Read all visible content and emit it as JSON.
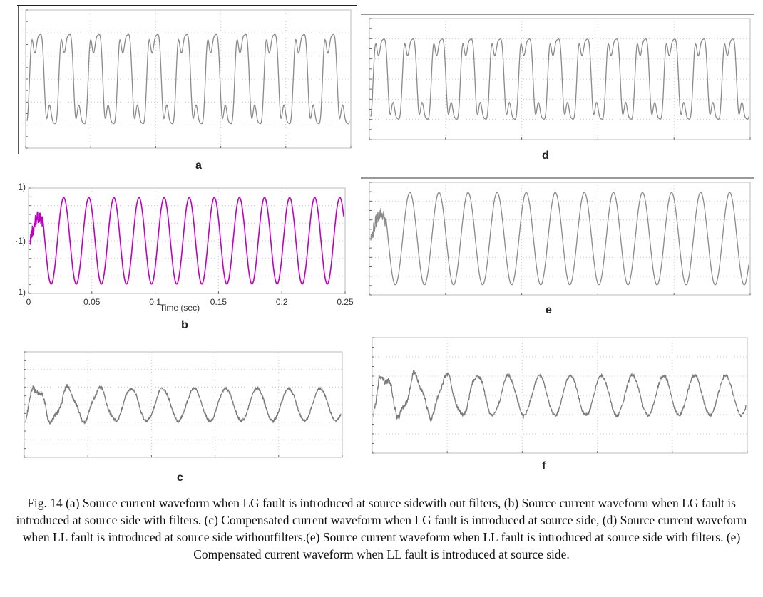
{
  "figure": {
    "panels": [
      {
        "id": "a",
        "label": "a",
        "color": "#8a8a8a",
        "framed": true
      },
      {
        "id": "b",
        "label": "b",
        "color": "#c000c0",
        "framed": false,
        "y_ticks": [
          "1)",
          "·1)",
          "1)"
        ],
        "x_ticks": [
          "0",
          "0.05",
          "0.1",
          "0.15",
          "0.2",
          "0.25"
        ],
        "xlabel": "Time (sec)"
      },
      {
        "id": "c",
        "label": "c",
        "color": "#7a7a7a",
        "framed": false
      },
      {
        "id": "d",
        "label": "d",
        "color": "#8a8a8a",
        "framed": false
      },
      {
        "id": "e",
        "label": "e",
        "color": "#8a8a8a",
        "framed": false
      },
      {
        "id": "f",
        "label": "f",
        "color": "#7a7a7a",
        "framed": false
      }
    ],
    "caption": "Fig. 14 (a) Source current waveform when LG fault is introduced at source sidewith out filters, (b)  Source current waveform when LG fault is introduced at source side with filters. (c) Compensated current waveform when LG fault is introduced at source side, (d)  Source current waveform when LL fault is introduced at source side withoutfilters.(e) Source current waveform when LL fault is introduced at source side with filters. (e) Compensated current waveform when LL fault is introduced at source side."
  },
  "chart_data": [
    {
      "type": "line",
      "panel": "a",
      "title": "",
      "xlabel": "",
      "ylabel": "",
      "grid": true,
      "series": [
        {
          "cycles": 11,
          "waveform": "distorted"
        }
      ]
    },
    {
      "type": "line",
      "panel": "b",
      "title": "",
      "xlabel": "Time (sec)",
      "ylabel": "",
      "xlim": [
        0,
        0.25
      ],
      "x_ticks": [
        0,
        0.05,
        0.1,
        0.15,
        0.2,
        0.25
      ],
      "grid": true,
      "series": [
        {
          "cycles": 12.5,
          "waveform": "sinusoidal"
        }
      ]
    },
    {
      "type": "line",
      "panel": "c",
      "title": "",
      "xlabel": "",
      "ylabel": "",
      "grid": true,
      "series": [
        {
          "cycles": 10,
          "waveform": "noisy"
        }
      ]
    },
    {
      "type": "line",
      "panel": "d",
      "title": "",
      "xlabel": "",
      "ylabel": "",
      "grid": true,
      "series": [
        {
          "cycles": 13,
          "waveform": "distorted"
        }
      ]
    },
    {
      "type": "line",
      "panel": "e",
      "title": "",
      "xlabel": "",
      "ylabel": "",
      "grid": true,
      "series": [
        {
          "cycles": 13,
          "waveform": "sinusoidal"
        }
      ]
    },
    {
      "type": "line",
      "panel": "f",
      "title": "",
      "xlabel": "",
      "ylabel": "",
      "grid": true,
      "series": [
        {
          "cycles": 12,
          "waveform": "noisy"
        }
      ]
    }
  ]
}
